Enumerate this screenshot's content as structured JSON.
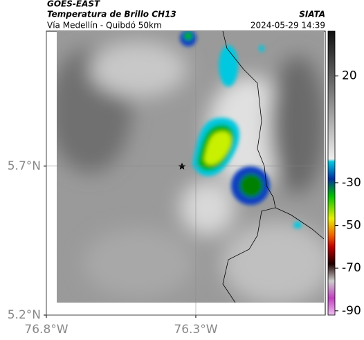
{
  "header": {
    "source": "GOES-EAST",
    "title": "Temperatura de Brillo CH13",
    "subtitle": "Vía Medellín - Quibdó 50km",
    "agency": "SIATA",
    "datetime": "2024-05-29 14:39"
  },
  "map": {
    "xlim": [
      -76.8,
      -75.867
    ],
    "ylim": [
      5.2,
      6.153
    ],
    "xticks": [
      {
        "value": -76.8,
        "label": "76.8°W"
      },
      {
        "value": -76.3,
        "label": "76.3°W"
      }
    ],
    "yticks": [
      {
        "value": 5.2,
        "label": "5.2°N"
      },
      {
        "value": 5.7,
        "label": "5.7°N"
      }
    ]
  },
  "colorbar": {
    "lim": [
      -92,
      41
    ],
    "ticks": [
      20,
      -30,
      -50,
      -70,
      -90
    ]
  }
}
